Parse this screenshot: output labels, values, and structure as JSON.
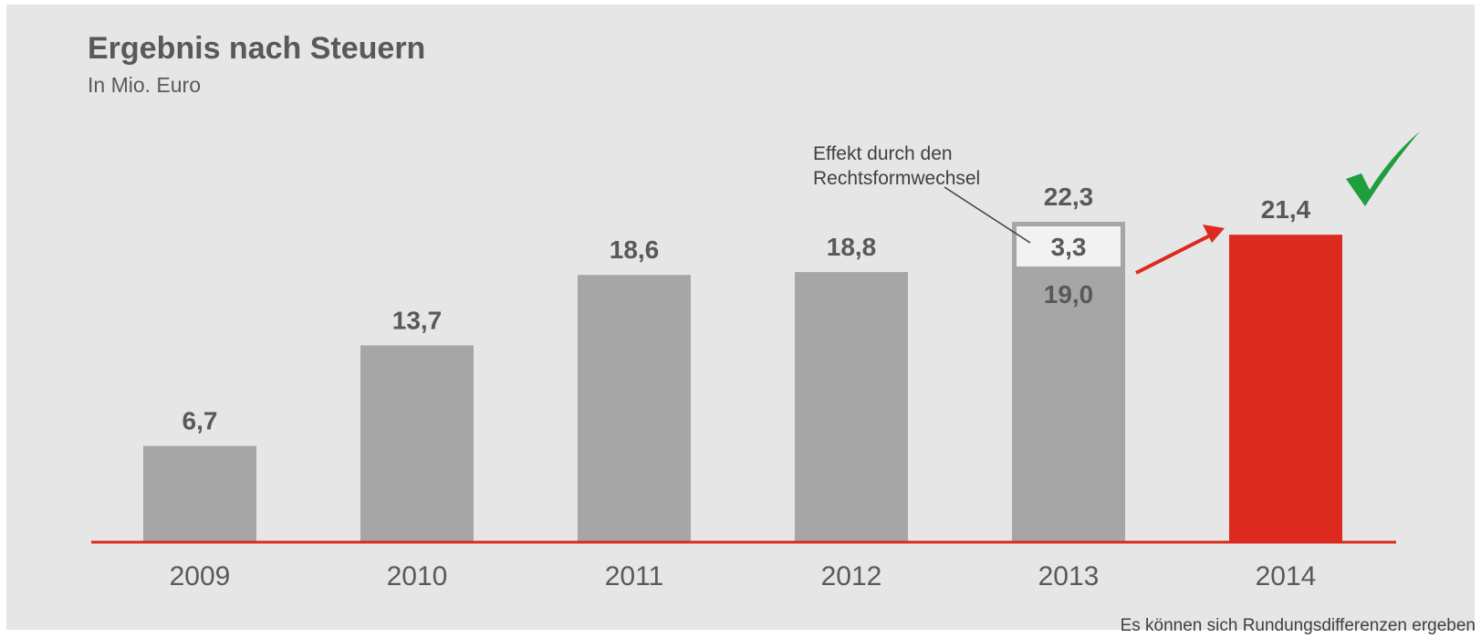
{
  "chart_data": {
    "type": "bar",
    "title": "Ergebnis nach Steuern",
    "subtitle": "In Mio. Euro",
    "categories": [
      "2009",
      "2010",
      "2011",
      "2012",
      "2013",
      "2014"
    ],
    "values": [
      6.7,
      13.7,
      18.6,
      18.8,
      22.3,
      21.4
    ],
    "value_labels": [
      "6,7",
      "13,7",
      "18,6",
      "18,8",
      "22,3",
      "21,4"
    ],
    "breakdown_2013": {
      "base_value": 19.0,
      "base_label": "19,0",
      "effect_value": 3.3,
      "effect_label": "3,3"
    },
    "annotation": "Effekt durch den Rechtsformwechsel",
    "annotation_lines": [
      "Effekt durch den",
      "Rechtsformwechsel"
    ],
    "highlight_category": "2014",
    "ylim": [
      0,
      22.3
    ],
    "grid": false,
    "xlabel": "",
    "ylabel": "",
    "colors": {
      "bar": "#a6a6a6",
      "highlight": "#dc2a1e",
      "effect_box": "#f2f2f2",
      "baseline": "#dc2a1e",
      "arrow": "#dc2a1e",
      "check": "#1e9e3c"
    }
  },
  "footnote": "Es können sich Rundungsdifferenzen ergeben",
  "icons": {
    "check": "check-icon",
    "arrow": "arrow-icon"
  }
}
